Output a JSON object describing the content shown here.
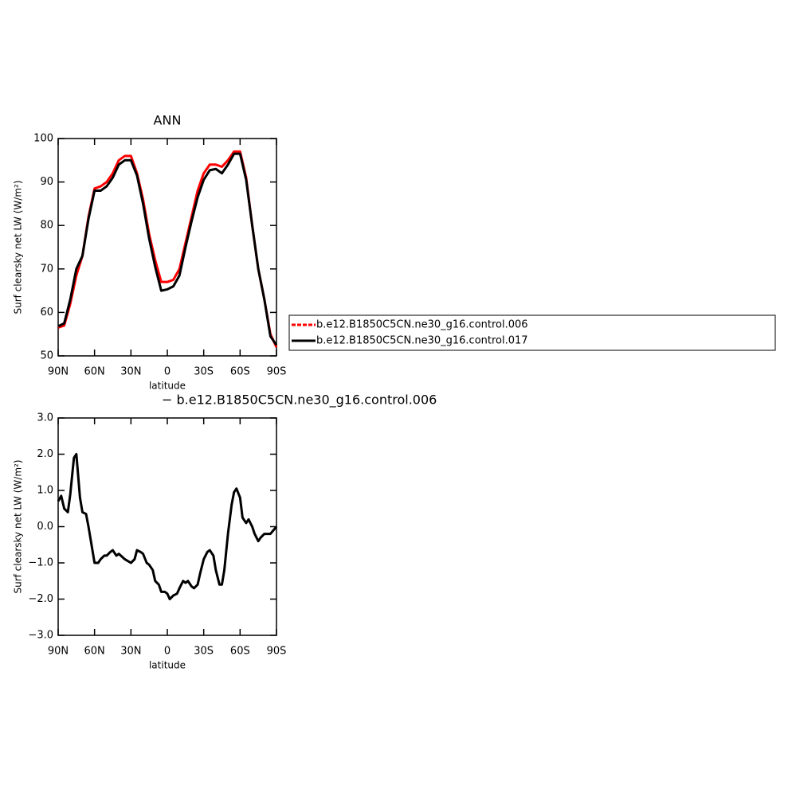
{
  "chart_data": [
    {
      "type": "line",
      "title": "ANN",
      "xlabel": "latitude",
      "ylabel": "Surf clearsky net LW (W/m²)",
      "x": [
        90,
        85,
        80,
        75,
        70,
        65,
        60,
        55,
        50,
        45,
        40,
        35,
        30,
        25,
        20,
        15,
        10,
        5,
        0,
        -5,
        -10,
        -15,
        -20,
        -25,
        -30,
        -35,
        -40,
        -45,
        -50,
        -55,
        -60,
        -65,
        -70,
        -75,
        -80,
        -85,
        -90
      ],
      "xlim": [
        90,
        -90
      ],
      "xticks": [
        {
          "value": 90,
          "label": "90N"
        },
        {
          "value": 60,
          "label": "60N"
        },
        {
          "value": 30,
          "label": "30N"
        },
        0,
        {
          "value": -30,
          "label": "30S"
        },
        {
          "value": -60,
          "label": "60S"
        },
        {
          "value": -90,
          "label": "90S"
        }
      ],
      "ylim": [
        50,
        100
      ],
      "yticks": [
        50,
        60,
        70,
        80,
        90,
        100
      ],
      "legend": "right",
      "series": [
        {
          "name": "b.e12.B1850C5CN.ne30_g16.control.006",
          "color": "#ff0000",
          "values": [
            56.5,
            57,
            62,
            68.5,
            73,
            82,
            88.5,
            89,
            90,
            92,
            95,
            96,
            96,
            92,
            86,
            78,
            72,
            67,
            67,
            67.5,
            70,
            76,
            82,
            88,
            92,
            94,
            94,
            93.5,
            95,
            97,
            97,
            91,
            80,
            70,
            63,
            55,
            52
          ]
        },
        {
          "name": "b.e12.B1850C5CN.ne30_g16.control.017",
          "color": "#000000",
          "values": [
            56.8,
            57.5,
            63,
            70,
            73,
            81.5,
            88,
            88,
            89,
            91,
            94,
            95,
            95,
            91.5,
            85,
            77,
            70.5,
            65,
            65.3,
            66,
            68.5,
            75,
            81,
            86.5,
            90.5,
            92.7,
            93,
            92,
            94,
            96.5,
            96.5,
            90.5,
            80,
            70,
            63,
            54.5,
            52.5
          ]
        }
      ]
    },
    {
      "type": "line",
      "title": "− b.e12.B1850C5CN.ne30_g16.control.006",
      "xlabel": "latitude",
      "ylabel": "Surf clearsky net LW (W/m²)",
      "x": [
        90,
        87.5,
        85,
        82,
        80,
        77,
        75,
        72,
        70,
        67,
        65,
        62,
        60,
        57,
        55,
        52,
        50,
        47,
        45,
        42,
        40,
        35,
        30,
        27,
        25,
        22,
        20,
        17,
        15,
        12,
        10,
        7,
        5,
        2,
        0,
        -2,
        -5,
        -8,
        -10,
        -13,
        -15,
        -17,
        -20,
        -22,
        -25,
        -27,
        -30,
        -33,
        -35,
        -38,
        -40,
        -43,
        -45,
        -47,
        -50,
        -53,
        -55,
        -57,
        -60,
        -62,
        -65,
        -67,
        -70,
        -72,
        -75,
        -77,
        -80,
        -85,
        -90
      ],
      "xlim": [
        90,
        -90
      ],
      "xticks": [
        {
          "value": 90,
          "label": "90N"
        },
        {
          "value": 60,
          "label": "60N"
        },
        {
          "value": 30,
          "label": "30N"
        },
        0,
        {
          "value": -30,
          "label": "30S"
        },
        {
          "value": -60,
          "label": "60S"
        },
        {
          "value": -90,
          "label": "90S"
        }
      ],
      "ylim": [
        -3,
        3
      ],
      "yticks": [
        {
          "value": -3,
          "label": "−3.0"
        },
        {
          "value": -2,
          "label": "−2.0"
        },
        {
          "value": -1,
          "label": "−1.0"
        },
        {
          "value": 0,
          "label": "0.0"
        },
        {
          "value": 1,
          "label": "1.0"
        },
        {
          "value": 2,
          "label": "2.0"
        },
        {
          "value": 3,
          "label": "3.0"
        }
      ],
      "series": [
        {
          "color": "#000000",
          "values": [
            0.7,
            0.85,
            0.5,
            0.4,
            0.9,
            1.9,
            2.0,
            0.8,
            0.4,
            0.35,
            0,
            -0.6,
            -1.0,
            -1.0,
            -0.9,
            -0.8,
            -0.8,
            -0.7,
            -0.65,
            -0.8,
            -0.75,
            -0.9,
            -1.0,
            -0.9,
            -0.65,
            -0.7,
            -0.75,
            -1.0,
            -1.05,
            -1.2,
            -1.5,
            -1.6,
            -1.8,
            -1.8,
            -1.85,
            -2.0,
            -1.9,
            -1.85,
            -1.7,
            -1.5,
            -1.55,
            -1.5,
            -1.65,
            -1.7,
            -1.6,
            -1.3,
            -0.9,
            -0.7,
            -0.65,
            -0.8,
            -1.2,
            -1.6,
            -1.6,
            -1.2,
            -0.2,
            0.6,
            0.95,
            1.05,
            0.8,
            0.25,
            0.1,
            0.2,
            0,
            -0.2,
            -0.4,
            -0.3,
            -0.2,
            -0.2,
            0
          ]
        }
      ]
    }
  ]
}
